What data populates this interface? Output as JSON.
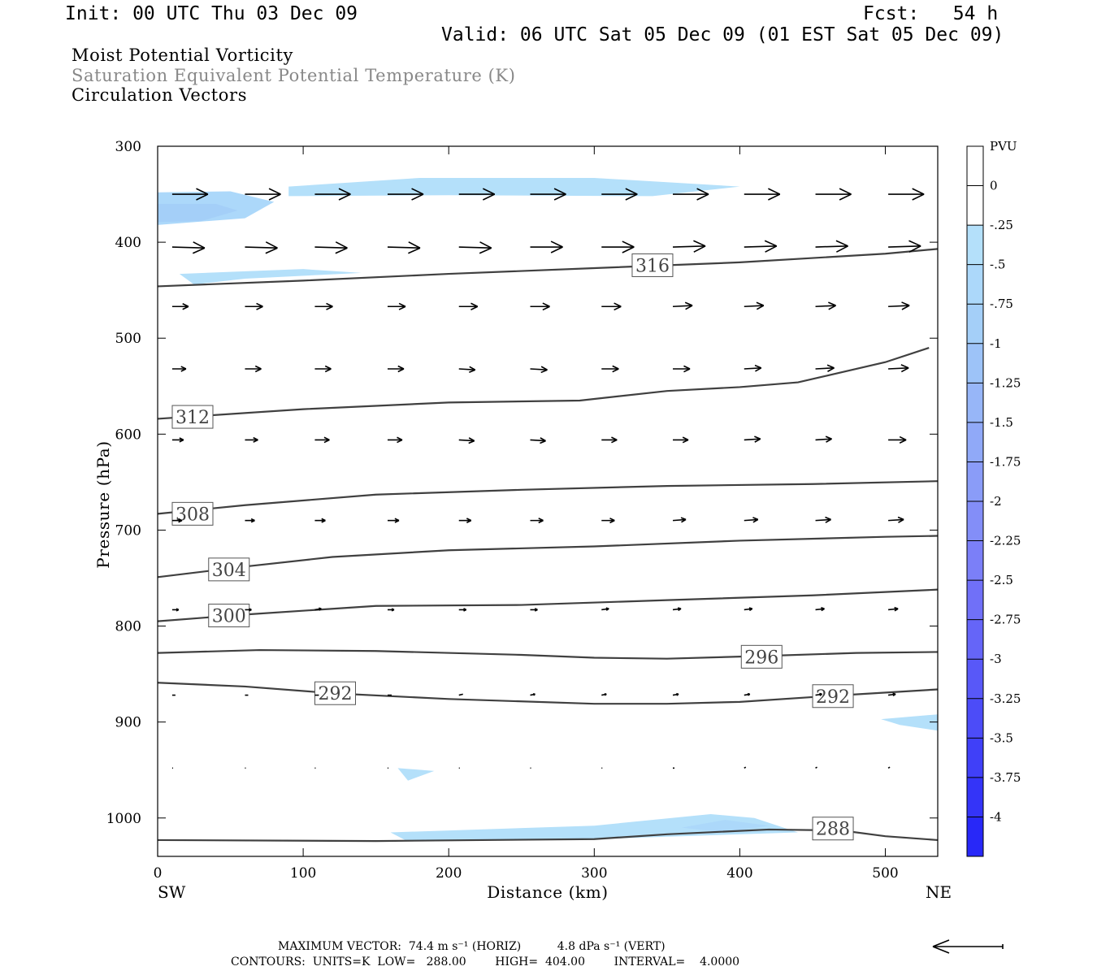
{
  "header": {
    "init": "Init: 00 UTC Thu 03 Dec 09",
    "fcst": "Fcst:   54 h",
    "valid": "Valid: 06 UTC Sat 05 Dec 09 (01 EST Sat 05 Dec 09)"
  },
  "fields": [
    "Moist Potential Vorticity",
    "Saturation Equivalent Potential Temperature (K)",
    "Circulation Vectors"
  ],
  "colors": {
    "contour": "#404040",
    "vector": "#000000",
    "pv_scale": [
      "#ffffff",
      "#ffffff",
      "#b4e0fa",
      "#acd8fa",
      "#a4cff8",
      "#9dc3f8",
      "#97b6f8",
      "#90a9f8",
      "#8a9cf8",
      "#838ef8",
      "#7b7ff8",
      "#7070f8",
      "#6565f8",
      "#5858f8",
      "#4c4cf8",
      "#4040f8",
      "#3434f8",
      "#2828f8"
    ]
  },
  "colorbar": {
    "title": "PVU",
    "labels": [
      "0",
      "-.25",
      "-.5",
      "-.75",
      "-1",
      "-1.25",
      "-1.5",
      "-1.75",
      "-2",
      "-2.25",
      "-2.5",
      "-2.75",
      "-3",
      "-3.25",
      "-3.5",
      "-3.75",
      "-4"
    ]
  },
  "footer": {
    "max_vector": "MAXIMUM VECTOR:  74.4 m s⁻¹ (HORIZ)          4.8 dPa s⁻¹ (VERT)",
    "contours": "CONTOURS:  UNITS=K  LOW=   288.00        HIGH=  404.00        INTERVAL=    4.0000"
  },
  "chart_data": {
    "type": "cross-section",
    "title": "Moist Potential Vorticity / Saturation Equivalent Potential Temperature (K) / Circulation Vectors",
    "xlabel": "Distance (km)",
    "ylabel": "Pressure (hPa)",
    "xlim": [
      0,
      536
    ],
    "ylim": [
      1040,
      300
    ],
    "x_ticks": [
      0,
      100,
      200,
      300,
      400,
      500
    ],
    "y_ticks": [
      300,
      400,
      500,
      600,
      700,
      800,
      900,
      1000
    ],
    "x_endpoints": {
      "left": "SW",
      "right": "NE"
    },
    "contour_levels": [
      {
        "value": 316,
        "label": "316",
        "label_at": [
          340,
          424
        ],
        "points": [
          [
            0,
            446
          ],
          [
            100,
            440
          ],
          [
            200,
            433
          ],
          [
            300,
            427
          ],
          [
            400,
            421
          ],
          [
            500,
            412
          ],
          [
            536,
            407
          ]
        ]
      },
      {
        "value": 312,
        "label": "312",
        "label_at": [
          24,
          582
        ],
        "points": [
          [
            0,
            584
          ],
          [
            100,
            574
          ],
          [
            200,
            567
          ],
          [
            290,
            565
          ],
          [
            350,
            555
          ],
          [
            400,
            551
          ],
          [
            440,
            546
          ],
          [
            500,
            525
          ],
          [
            530,
            510
          ]
        ]
      },
      {
        "value": 308,
        "label": "308",
        "label_at": [
          24,
          683
        ],
        "points": [
          [
            0,
            683
          ],
          [
            60,
            674
          ],
          [
            150,
            663
          ],
          [
            250,
            658
          ],
          [
            350,
            654
          ],
          [
            450,
            652
          ],
          [
            536,
            649
          ]
        ]
      },
      {
        "value": 304,
        "label": "304",
        "label_at": [
          49,
          741
        ],
        "points": [
          [
            0,
            749
          ],
          [
            60,
            738
          ],
          [
            120,
            728
          ],
          [
            200,
            721
          ],
          [
            300,
            717
          ],
          [
            400,
            711
          ],
          [
            500,
            707
          ],
          [
            536,
            706
          ]
        ]
      },
      {
        "value": 300,
        "label": "300",
        "label_at": [
          49,
          789
        ],
        "points": [
          [
            0,
            795
          ],
          [
            60,
            788
          ],
          [
            150,
            779
          ],
          [
            250,
            778
          ],
          [
            350,
            773
          ],
          [
            450,
            768
          ],
          [
            536,
            762
          ]
        ]
      },
      {
        "value": 296,
        "label": "296",
        "label_at": [
          415,
          832
        ],
        "points": [
          [
            0,
            828
          ],
          [
            70,
            825
          ],
          [
            150,
            826
          ],
          [
            250,
            830
          ],
          [
            300,
            833
          ],
          [
            350,
            834
          ],
          [
            420,
            831
          ],
          [
            480,
            828
          ],
          [
            536,
            827
          ]
        ]
      },
      {
        "value": 292,
        "label": "292",
        "label_at": [
          122,
          870
        ],
        "points": [
          [
            0,
            859
          ],
          [
            60,
            863
          ],
          [
            120,
            870
          ],
          [
            200,
            876
          ],
          [
            300,
            881
          ],
          [
            350,
            881
          ],
          [
            400,
            879
          ],
          [
            460,
            873
          ],
          [
            536,
            866
          ]
        ]
      },
      {
        "value": 292,
        "label": "292",
        "label_at": [
          464,
          873
        ],
        "points": []
      },
      {
        "value": 288,
        "label": "288",
        "label_at": [
          464,
          1011
        ],
        "points": [
          [
            0,
            1023
          ],
          [
            150,
            1024
          ],
          [
            300,
            1022
          ],
          [
            350,
            1017
          ],
          [
            420,
            1012
          ],
          [
            470,
            1013
          ],
          [
            500,
            1019
          ],
          [
            536,
            1023
          ]
        ]
      }
    ],
    "pv_shaded": [
      {
        "pvu": -0.5,
        "points": [
          [
            0,
            348
          ],
          [
            50,
            347
          ],
          [
            80,
            358
          ],
          [
            60,
            375
          ],
          [
            0,
            382
          ]
        ]
      },
      {
        "pvu": -0.75,
        "points": [
          [
            0,
            360
          ],
          [
            40,
            360
          ],
          [
            55,
            367
          ],
          [
            30,
            378
          ],
          [
            0,
            379
          ]
        ]
      },
      {
        "pvu": -0.25,
        "points": [
          [
            90,
            342
          ],
          [
            180,
            333
          ],
          [
            300,
            333
          ],
          [
            400,
            342
          ],
          [
            340,
            352
          ],
          [
            200,
            351
          ],
          [
            90,
            352
          ]
        ]
      },
      {
        "pvu": -0.25,
        "points": [
          [
            15,
            433
          ],
          [
            100,
            428
          ],
          [
            140,
            432
          ],
          [
            60,
            438
          ],
          [
            25,
            444
          ]
        ]
      },
      {
        "pvu": -0.25,
        "points": [
          [
            160,
            1015
          ],
          [
            300,
            1008
          ],
          [
            380,
            996
          ],
          [
            410,
            1000
          ],
          [
            440,
            1015
          ],
          [
            300,
            1022
          ],
          [
            170,
            1023
          ]
        ]
      },
      {
        "pvu": -0.5,
        "points": [
          [
            360,
            1010
          ],
          [
            390,
            1002
          ],
          [
            420,
            1008
          ],
          [
            390,
            1015
          ]
        ]
      },
      {
        "pvu": -0.25,
        "points": [
          [
            497,
            897
          ],
          [
            536,
            892
          ],
          [
            536,
            909
          ],
          [
            510,
            903
          ]
        ]
      },
      {
        "pvu": -0.25,
        "points": [
          [
            165,
            948
          ],
          [
            190,
            951
          ],
          [
            172,
            961
          ]
        ]
      }
    ],
    "vectors": {
      "x": [
        10,
        60,
        108,
        158,
        207,
        256,
        305,
        354,
        403,
        452,
        502
      ],
      "levels": [
        350,
        405,
        467,
        532,
        606,
        690,
        783,
        872,
        948
      ],
      "u": [
        [
          44,
          44,
          44,
          44,
          44,
          44,
          44,
          44,
          44,
          44,
          44
        ],
        [
          40,
          40,
          40,
          40,
          40,
          40,
          40,
          40,
          40,
          40,
          40
        ],
        [
          20,
          22,
          22,
          22,
          23,
          24,
          24,
          24,
          24,
          25,
          26
        ],
        [
          17,
          20,
          20,
          20,
          20,
          21,
          21,
          21,
          21,
          23,
          25
        ],
        [
          14,
          16,
          18,
          18,
          19,
          19,
          19,
          19,
          20,
          20,
          22
        ],
        [
          12,
          12,
          13,
          14,
          15,
          16,
          16,
          16,
          17,
          19,
          19
        ],
        [
          8,
          8,
          8,
          8,
          9,
          9,
          9,
          10,
          10,
          11,
          12
        ],
        [
          4,
          4,
          5,
          5,
          5,
          6,
          6,
          7,
          7,
          8,
          9
        ],
        [
          1,
          1,
          1,
          1,
          1,
          1,
          1,
          2,
          2,
          2,
          2
        ]
      ],
      "w": [
        [
          0,
          0,
          0,
          0,
          0,
          0,
          0,
          0,
          0,
          0,
          0
        ],
        [
          -1,
          -1,
          -1,
          -1,
          -1,
          0,
          0,
          1,
          1,
          1,
          1
        ],
        [
          0,
          0,
          0,
          0,
          0,
          0,
          0,
          1,
          1,
          1,
          1
        ],
        [
          0,
          0,
          0,
          0,
          -1,
          -1,
          0,
          0,
          1,
          1,
          1
        ],
        [
          0,
          0,
          0,
          0,
          -1,
          -1,
          0,
          0,
          1,
          1,
          0
        ],
        [
          0,
          0,
          0,
          0,
          0,
          0,
          0,
          1,
          1,
          1,
          1
        ],
        [
          0,
          0,
          1,
          0,
          0,
          0,
          1,
          1,
          1,
          1,
          1
        ],
        [
          0,
          0,
          0,
          0,
          1,
          1,
          1,
          1,
          1,
          1,
          1
        ],
        [
          0,
          0,
          0,
          0,
          0,
          0,
          0,
          0,
          1,
          1,
          1
        ]
      ]
    }
  }
}
